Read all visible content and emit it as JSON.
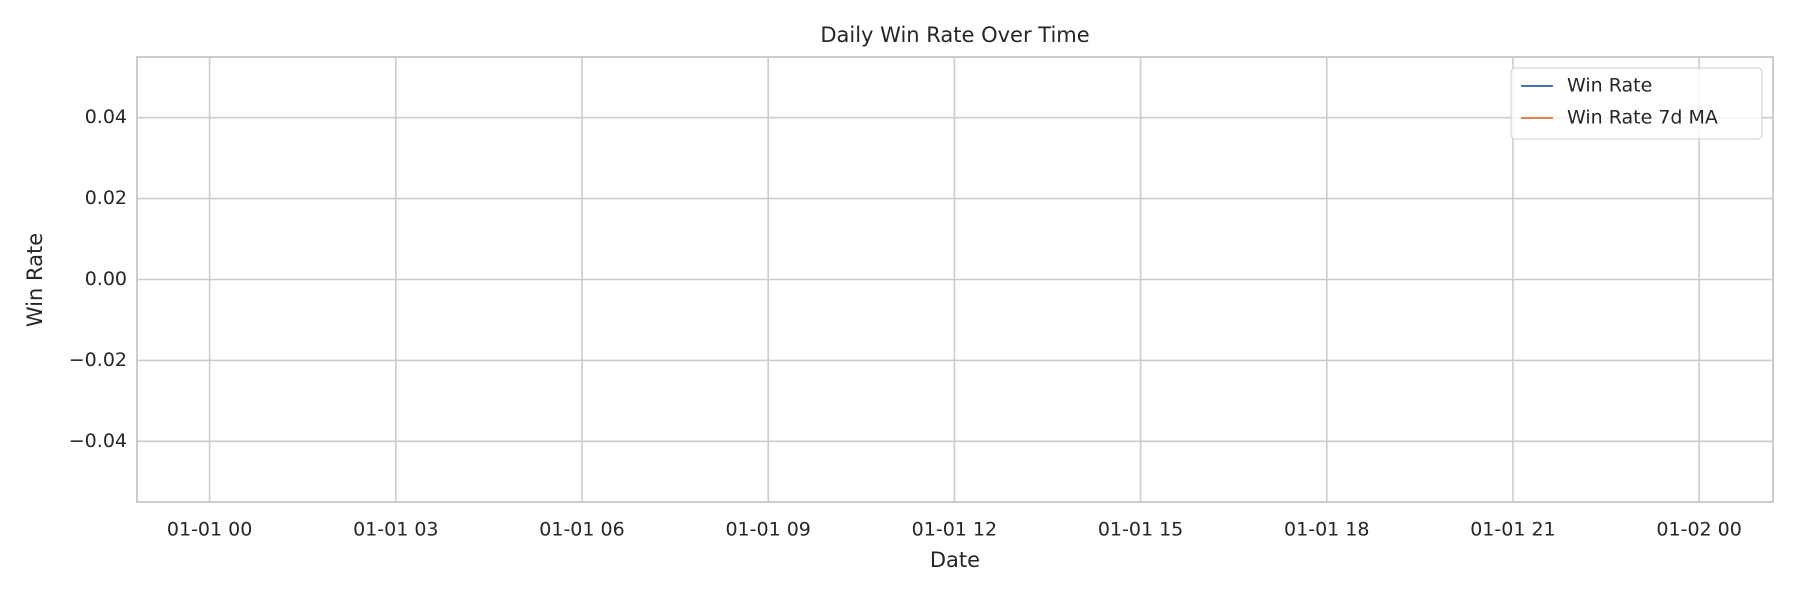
{
  "chart_data": {
    "type": "line",
    "title": "Daily Win Rate Over Time",
    "x_label": "Date",
    "y_label": "Win Rate",
    "x": [],
    "series": [
      {
        "name": "Win Rate",
        "color": "#4c72b0",
        "values": []
      },
      {
        "name": "Win Rate 7d MA",
        "color": "#dd8452",
        "values": []
      }
    ],
    "xlim": [
      -1.17,
      25.19
    ],
    "xticks": [
      {
        "value": 0,
        "label": "01-01 00"
      },
      {
        "value": 3,
        "label": "01-01 03"
      },
      {
        "value": 6,
        "label": "01-01 06"
      },
      {
        "value": 9,
        "label": "01-01 09"
      },
      {
        "value": 12,
        "label": "01-01 12"
      },
      {
        "value": 15,
        "label": "01-01 15"
      },
      {
        "value": 18,
        "label": "01-01 18"
      },
      {
        "value": 21,
        "label": "01-01 21"
      },
      {
        "value": 24,
        "label": "01-02 00"
      }
    ],
    "ylim": [
      -0.055,
      0.055
    ],
    "yticks": [
      {
        "value": -0.04,
        "label": "−0.04"
      },
      {
        "value": -0.02,
        "label": "−0.02"
      },
      {
        "value": 0,
        "label": "0.00"
      },
      0.02,
      0.04
    ],
    "grid": true,
    "legend": "upper right"
  }
}
